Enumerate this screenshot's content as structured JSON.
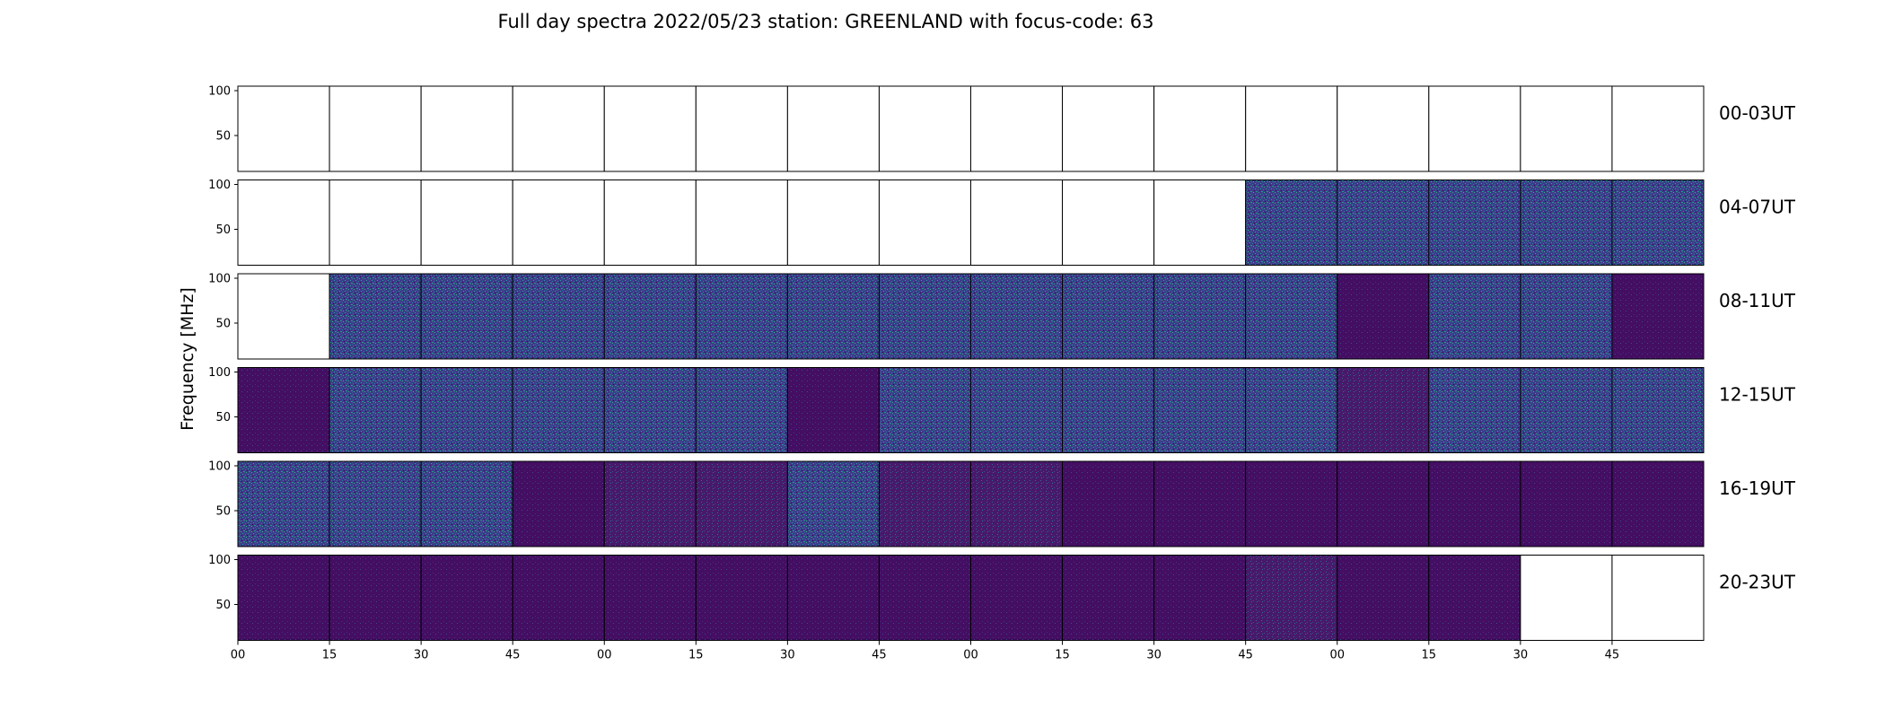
{
  "chart_data": {
    "type": "heatmap",
    "title": "Full day spectra 2022/05/23 station: GREENLAND with focus-code: 63",
    "ylabel": "Frequency [MHz]",
    "xlabel": "",
    "ylim": [
      10,
      105
    ],
    "y_ticks": [
      "100",
      "50"
    ],
    "y_tick_values": [
      100,
      50
    ],
    "x_tick_labels": [
      "00",
      "15",
      "30",
      "45",
      "00",
      "15",
      "30",
      "45",
      "00",
      "15",
      "30",
      "45",
      "00",
      "15",
      "30",
      "45"
    ],
    "colormap": [
      "#440154",
      "#3b528b",
      "#21918c",
      "#35b779"
    ],
    "grid": false,
    "legend": "none",
    "rows": [
      {
        "label": "00-03UT",
        "panels": [
          "none",
          "none",
          "none",
          "none",
          "none",
          "none",
          "none",
          "none",
          "none",
          "none",
          "none",
          "none",
          "none",
          "none",
          "none",
          "none"
        ]
      },
      {
        "label": "04-07UT",
        "panels": [
          "none",
          "none",
          "none",
          "none",
          "none",
          "none",
          "none",
          "none",
          "none",
          "none",
          "none",
          "high",
          "high",
          "high",
          "high",
          "high"
        ]
      },
      {
        "label": "08-11UT",
        "panels": [
          "none",
          "high",
          "high",
          "high",
          "high",
          "high",
          "high",
          "high",
          "high",
          "high",
          "high",
          "high",
          "low",
          "high",
          "high",
          "low"
        ]
      },
      {
        "label": "12-15UT",
        "panels": [
          "low",
          "high",
          "high",
          "high",
          "high",
          "high",
          "low",
          "high",
          "high",
          "high",
          "high",
          "high",
          "mid",
          "high",
          "high",
          "high"
        ]
      },
      {
        "label": "16-19UT",
        "panels": [
          "high",
          "high",
          "high",
          "low",
          "mid",
          "mid",
          "high",
          "mid",
          "mid",
          "low",
          "low",
          "low",
          "low",
          "low",
          "low",
          "low"
        ]
      },
      {
        "label": "20-23UT",
        "panels": [
          "low",
          "low",
          "low",
          "low",
          "low",
          "low",
          "low",
          "low",
          "low",
          "low",
          "low",
          "mid",
          "low",
          "low",
          "none",
          "none"
        ]
      }
    ]
  }
}
